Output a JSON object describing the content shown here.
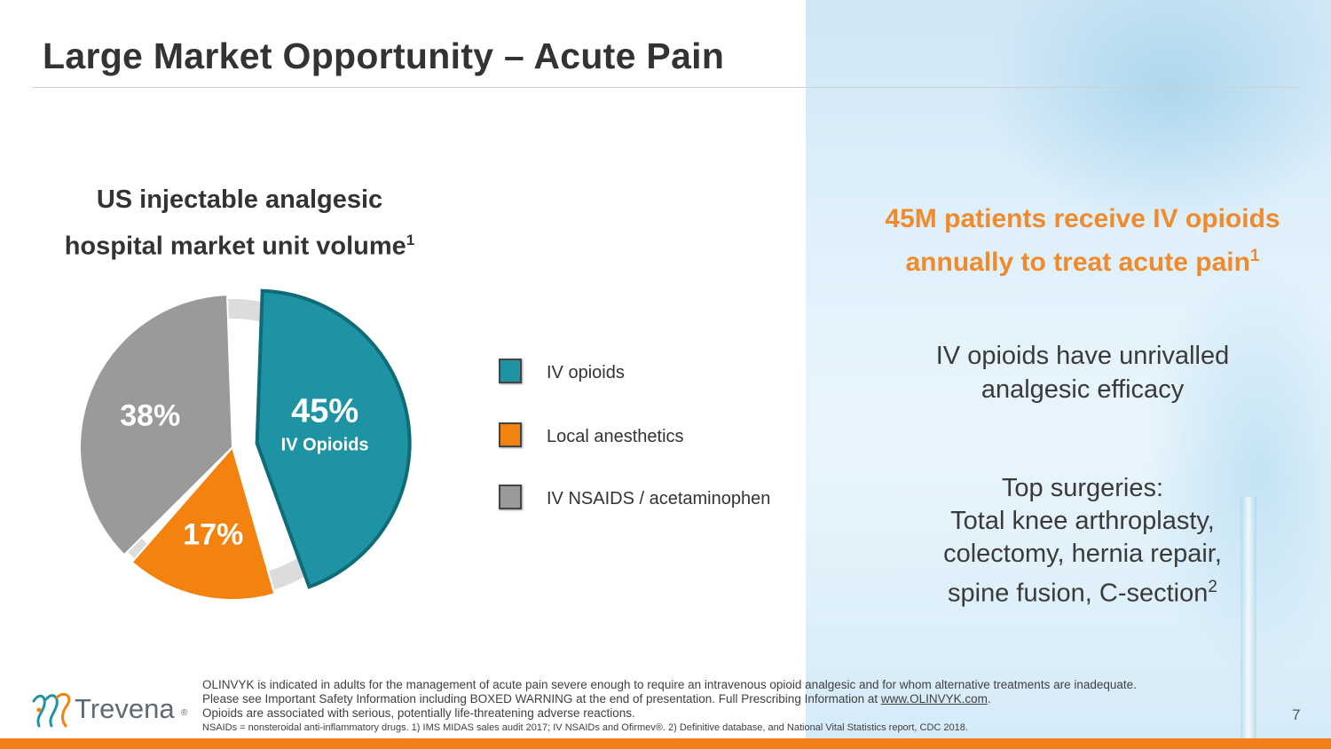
{
  "slide": {
    "title": "Large Market Opportunity – Acute Pain",
    "page_number": "7"
  },
  "chart_title": {
    "line1": "US injectable analgesic",
    "line2": "hospital market unit volume",
    "sup": "1"
  },
  "chart_data": {
    "type": "pie",
    "title": "US injectable analgesic hospital market unit volume",
    "categories": [
      "IV opioids",
      "Local anesthetics",
      "IV NSAIDS / acetaminophen"
    ],
    "values": [
      45,
      17,
      38
    ],
    "unit": "%",
    "colors": [
      "#1e93a3",
      "#f4820f",
      "#9a9a9a"
    ],
    "slice_labels": [
      "45%",
      "17%",
      "38%"
    ],
    "slice_sublabel": "IV Opioids",
    "exploded": [
      "IV opioids"
    ],
    "legend_position": "right"
  },
  "legend": [
    {
      "label": "IV opioids",
      "color": "#1e93a3"
    },
    {
      "label": "Local anesthetics",
      "color": "#f4820f"
    },
    {
      "label": "IV NSAIDS / acetaminophen",
      "color": "#9a9a9a"
    }
  ],
  "callout": {
    "line1": "45M patients receive IV opioids",
    "line2": "annually to treat acute pain",
    "sup": "1"
  },
  "efficacy": {
    "line1": "IV opioids have unrivalled",
    "line2": "analgesic efficacy"
  },
  "surgeries": {
    "heading": "Top surgeries:",
    "line1": "Total knee arthroplasty,",
    "line2": "colectomy, hernia repair,",
    "line3": "spine fusion, C-section",
    "sup": "2"
  },
  "footnotes": {
    "line1": "OLINVYK is indicated in adults for the management of acute pain severe enough to require an intravenous opioid analgesic and for whom alternative treatments are inadequate.",
    "line2_pre": "Please see Important Safety Information including BOXED WARNING at the end of presentation. Full Prescribing Information at ",
    "line2_link": "www.OLINVYK.com",
    "line2_post": ".",
    "line3": "Opioids are associated with serious, potentially life-threatening adverse reactions.",
    "line4": "NSAIDs = nonsteroidal anti-inflammatory drugs. 1) IMS MIDAS sales audit 2017; IV NSAIDs and Ofirmev®. 2) Definitive database, and National Vital Statistics report, CDC 2018."
  },
  "logo": {
    "wordmark": "Trevena",
    "reg": "®",
    "colors": [
      "#1e93a3",
      "#f4820f"
    ]
  }
}
